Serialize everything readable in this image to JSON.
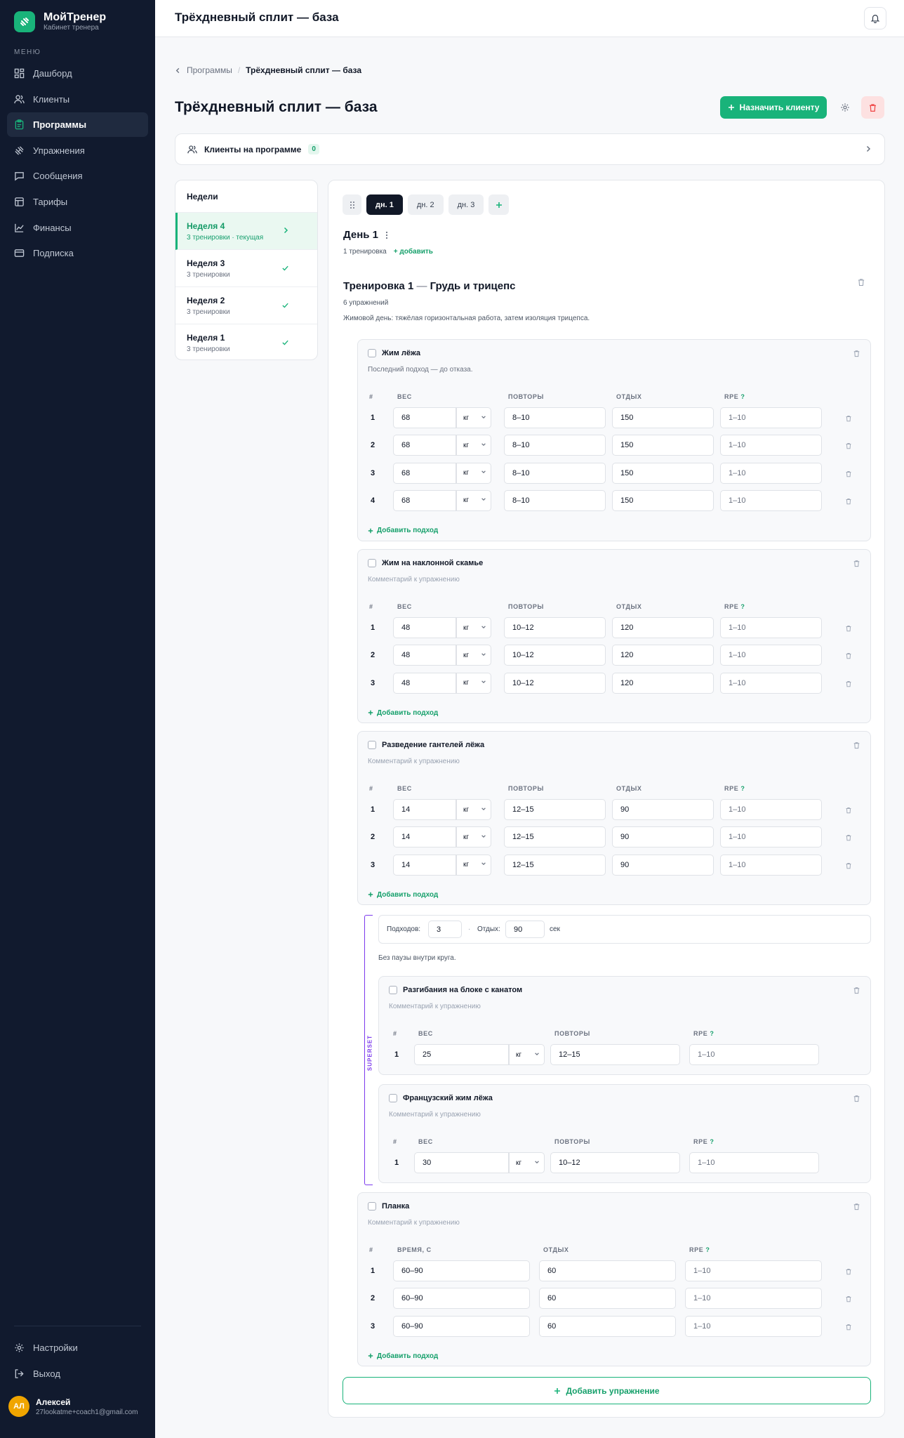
{
  "sidebar": {
    "brand_name": "МойТренер",
    "brand_sub": "Кабинет тренера",
    "menu_label": "МЕНЮ",
    "items": [
      {
        "label": "Дашборд",
        "icon": "dashboard-icon"
      },
      {
        "label": "Клиенты",
        "icon": "users-icon"
      },
      {
        "label": "Программы",
        "icon": "clipboard-icon",
        "active": true
      },
      {
        "label": "Упражнения",
        "icon": "dumbbell-icon"
      },
      {
        "label": "Сообщения",
        "icon": "message-icon"
      },
      {
        "label": "Тарифы",
        "icon": "tariff-icon"
      },
      {
        "label": "Финансы",
        "icon": "chart-icon"
      },
      {
        "label": "Подписка",
        "icon": "card-icon"
      }
    ],
    "settings_label": "Настройки",
    "logout_label": "Выход",
    "user": {
      "initials": "АЛ",
      "name": "Алексей",
      "email": "27lookatme+coach1@gmail.com"
    }
  },
  "topbar": {
    "title": "Трёхдневный сплит — база"
  },
  "breadcrumb": {
    "parent": "Программы",
    "current": "Трёхдневный сплит — база"
  },
  "page": {
    "title": "Трёхдневный сплит — база",
    "assign_label": "Назначить клиенту"
  },
  "clients": {
    "label": "Клиенты на программе",
    "count": "0"
  },
  "weeks": {
    "title": "Недели",
    "items": [
      {
        "name": "Неделя 4",
        "sub": "3 тренировки · текущая",
        "active": true
      },
      {
        "name": "Неделя 3",
        "sub": "3 тренировки"
      },
      {
        "name": "Неделя 2",
        "sub": "3 тренировки"
      },
      {
        "name": "Неделя 1",
        "sub": "3 тренировки"
      }
    ]
  },
  "day_tabs": [
    "дн. 1",
    "дн. 2",
    "дн. 3"
  ],
  "day": {
    "title": "День 1",
    "count": "1 тренировка",
    "add_label": "добавить"
  },
  "training": {
    "title": "Тренировка 1",
    "dash": "—",
    "name": "Грудь и трицепс",
    "count": "6 упражнений",
    "note": "Жимовой день: тяжёлая горизонтальная работа, затем изоляция трицепса."
  },
  "cols": {
    "num": "#",
    "weight": "ВЕС",
    "reps": "ПОВТОРЫ",
    "rest": "ОТДЫХ",
    "rpe": "RPE",
    "q": "?",
    "time": "ВРЕМЯ, С"
  },
  "unit": "кг",
  "rpe_placeholder": "1–10",
  "add_set_label": "Добавить подход",
  "comment_placeholder": "Комментарий к упражнению",
  "ex1": {
    "name": "Жим лёжа",
    "comment": "Последний подход — до отказа.",
    "sets": [
      {
        "n": "1",
        "w": "68",
        "r": "8–10",
        "rest": "150"
      },
      {
        "n": "2",
        "w": "68",
        "r": "8–10",
        "rest": "150"
      },
      {
        "n": "3",
        "w": "68",
        "r": "8–10",
        "rest": "150"
      },
      {
        "n": "4",
        "w": "68",
        "r": "8–10",
        "rest": "150"
      }
    ]
  },
  "ex2": {
    "name": "Жим на наклонной скамье",
    "sets": [
      {
        "n": "1",
        "w": "48",
        "r": "10–12",
        "rest": "120"
      },
      {
        "n": "2",
        "w": "48",
        "r": "10–12",
        "rest": "120"
      },
      {
        "n": "3",
        "w": "48",
        "r": "10–12",
        "rest": "120"
      }
    ]
  },
  "ex3": {
    "name": "Разведение гантелей лёжа",
    "sets": [
      {
        "n": "1",
        "w": "14",
        "r": "12–15",
        "rest": "90"
      },
      {
        "n": "2",
        "w": "14",
        "r": "12–15",
        "rest": "90"
      },
      {
        "n": "3",
        "w": "14",
        "r": "12–15",
        "rest": "90"
      }
    ]
  },
  "superset": {
    "label": "SUPERSET",
    "sets_label": "Подходов:",
    "sets_value": "3",
    "sep": "·",
    "rest_label": "Отдых:",
    "rest_value": "90",
    "rest_unit": "сек",
    "note": "Без паузы внутри круга."
  },
  "ex4": {
    "name": "Разгибания на блоке с канатом",
    "sets": [
      {
        "n": "1",
        "w": "25",
        "r": "12–15"
      }
    ]
  },
  "ex5": {
    "name": "Французский жим лёжа",
    "sets": [
      {
        "n": "1",
        "w": "30",
        "r": "10–12"
      }
    ]
  },
  "ex6": {
    "name": "Планка",
    "sets": [
      {
        "n": "1",
        "t": "60–90",
        "rest": "60"
      },
      {
        "n": "2",
        "t": "60–90",
        "rest": "60"
      },
      {
        "n": "3",
        "t": "60–90",
        "rest": "60"
      }
    ]
  },
  "add_exercise_label": "Добавить упражнение",
  "colors": {
    "accent": "#19b37a",
    "sidebar": "#111a2e",
    "superset": "#7c3aed",
    "danger": "#ef4444"
  }
}
